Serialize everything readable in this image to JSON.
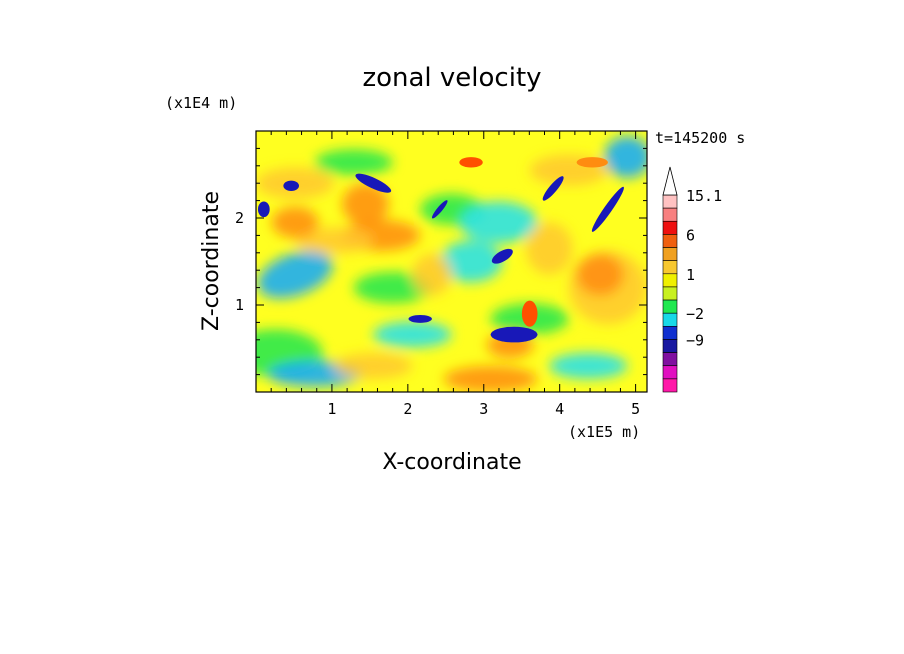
{
  "chart_data": {
    "type": "heatmap",
    "title": "zonal velocity",
    "xlabel": "X-coordinate",
    "ylabel": "Z-coordinate",
    "x_scale_label": "(x1E5 m)",
    "y_scale_label": "(x1E4 m)",
    "time_label": "t=145200 s",
    "xlim": [
      0,
      5.15
    ],
    "ylim": [
      0,
      3.0
    ],
    "x_ticks": [
      "1",
      "2",
      "3",
      "4",
      "5"
    ],
    "y_ticks": [
      "1",
      "2"
    ],
    "colorbar": {
      "labels": [
        "15.1",
        "6",
        "1",
        "−2",
        "−9"
      ],
      "levels_desc": [
        15.1,
        12,
        9,
        6,
        3,
        1.5,
        1,
        0.5,
        0,
        -2,
        -5,
        -9,
        -12,
        -15
      ],
      "colors_desc": [
        "#ffc2c2",
        "#f88080",
        "#ee1010",
        "#f06010",
        "#f0a020",
        "#f8c830",
        "#f0f000",
        "#c8f020",
        "#20e850",
        "#18d8e8",
        "#1030d0",
        "#1818a0",
        "#8010a0",
        "#e010c0",
        "#ff18a8"
      ],
      "extend": "max"
    },
    "field_colors": {
      "strong_neg": "#1818b8",
      "neg": "#10a8ff",
      "near_zero_neg": "#20e0f0",
      "zero": "#20e850",
      "small_pos": "#ffff20",
      "pos": "#ffc830",
      "strong_pos": "#ff8c10",
      "max_pos": "#ff5000"
    }
  }
}
